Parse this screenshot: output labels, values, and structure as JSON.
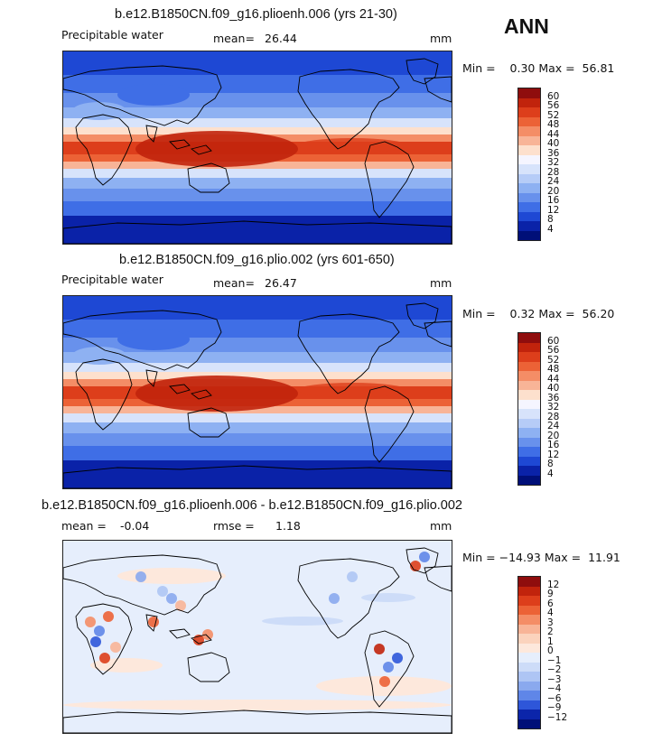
{
  "season": "ANN",
  "panels": [
    {
      "title": "b.e12.B1850CN.f09_g16.plioenh.006 (yrs 21-30)",
      "variable": "Precipitable water",
      "stat_label": "mean=",
      "stat_value": "26.44",
      "units": "mm",
      "minmax": "Min =    0.30 Max =  56.81",
      "colorbar": {
        "labels": [
          "60",
          "56",
          "52",
          "48",
          "44",
          "40",
          "36",
          "32",
          "28",
          "24",
          "20",
          "16",
          "12",
          "8",
          "4"
        ],
        "colors": [
          "#8f0d0d",
          "#c1230c",
          "#dd3e1b",
          "#ec6236",
          "#f48d66",
          "#f8b497",
          "#fde0cd",
          "#f5f5ff",
          "#d7e3fb",
          "#b6ccf7",
          "#8eb1f2",
          "#6891ec",
          "#3f6ee6",
          "#1e48d4",
          "#0a22a8",
          "#000f78"
        ]
      },
      "map": {
        "field": "moisture",
        "description_color_ramp": "blue-to-red"
      }
    },
    {
      "title": "b.e12.B1850CN.f09_g16.plio.002 (yrs 601-650)",
      "variable": "Precipitable water",
      "stat_label": "mean=",
      "stat_value": "26.47",
      "units": "mm",
      "minmax": "Min =    0.32 Max =  56.20",
      "colorbar": {
        "labels": [
          "60",
          "56",
          "52",
          "48",
          "44",
          "40",
          "36",
          "32",
          "28",
          "24",
          "20",
          "16",
          "12",
          "8",
          "4"
        ],
        "colors": [
          "#8f0d0d",
          "#c1230c",
          "#dd3e1b",
          "#ec6236",
          "#f48d66",
          "#f8b497",
          "#fde0cd",
          "#f5f5ff",
          "#d7e3fb",
          "#b6ccf7",
          "#8eb1f2",
          "#6891ec",
          "#3f6ee6",
          "#1e48d4",
          "#0a22a8",
          "#000f78"
        ]
      },
      "map": {
        "field": "moisture"
      }
    },
    {
      "title": "b.e12.B1850CN.f09_g16.plioenh.006 - b.e12.B1850CN.f09_g16.plio.002",
      "stat_label": "mean =",
      "stat_value": "-0.04",
      "rmse_label": "rmse =",
      "rmse_value": "1.18",
      "units": "mm",
      "minmax": "Min = −14.93 Max =  11.91",
      "colorbar": {
        "labels": [
          "12",
          "9",
          "6",
          "4",
          "3",
          "2",
          "1",
          "0",
          "−1",
          "−2",
          "−3",
          "−4",
          "−6",
          "−9",
          "−12"
        ],
        "colors": [
          "#8f0d0d",
          "#c1230c",
          "#dd3e1b",
          "#ec6236",
          "#f48d66",
          "#f8b497",
          "#fbd3bd",
          "#fde8dc",
          "#e6eefc",
          "#cddcf8",
          "#aec5f4",
          "#8aa9ee",
          "#5f86e8",
          "#2e56d9",
          "#0b25aa",
          "#000f78"
        ]
      },
      "map": {
        "field": "difference"
      }
    }
  ]
}
